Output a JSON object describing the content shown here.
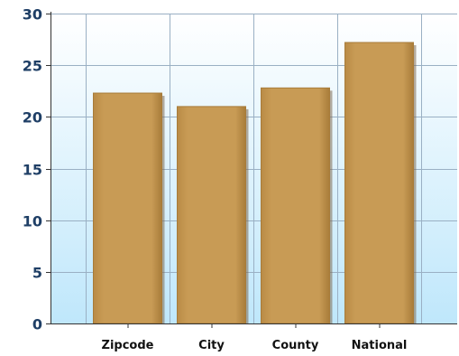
{
  "chart_data": {
    "type": "bar",
    "title": "",
    "xlabel": "",
    "ylabel": "",
    "categories": [
      "Zipcode",
      "City",
      "County",
      "National"
    ],
    "values": [
      22.3,
      21.0,
      22.8,
      27.2
    ],
    "ylim": [
      0,
      30
    ],
    "yticks": [
      "0",
      "5",
      "10",
      "15",
      "20",
      "25",
      "30"
    ],
    "grid": true,
    "legend": "none",
    "colors": {
      "bar": "#c79a52",
      "bar_edge": "#a87c3a",
      "bar_shadow": "#7d6a50",
      "grid": "#9ab0c4",
      "axis": "#333333",
      "plot_bg_top": "#ffffff",
      "plot_bg_bottom": "#bfe7fb"
    }
  }
}
